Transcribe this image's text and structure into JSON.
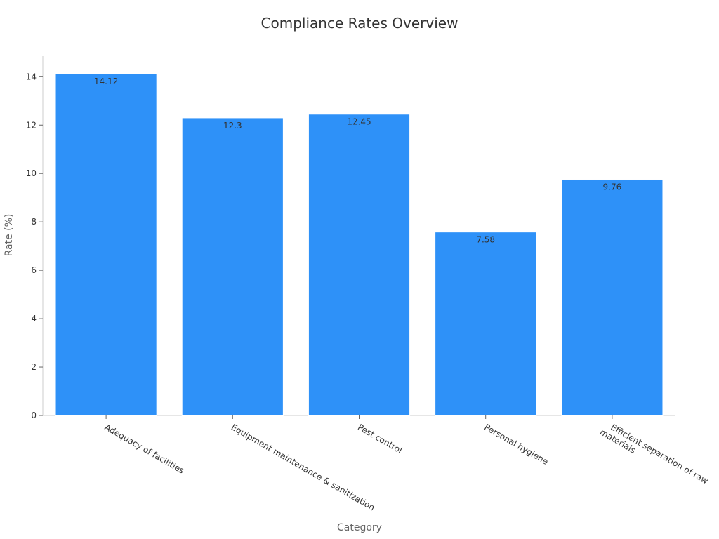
{
  "chart_data": {
    "type": "bar",
    "title": "Compliance Rates Overview",
    "xlabel": "Category",
    "ylabel": "Rate (%)",
    "categories": [
      "Adequacy of facilities",
      "Equipment maintenance & sanitization",
      "Pest control",
      "Personal hygiene",
      "Efficient separation of raw materials"
    ],
    "category_label_lines": [
      [
        "Adequacy of facilities"
      ],
      [
        "Equipment maintenance & sanitization"
      ],
      [
        "Pest control"
      ],
      [
        "Personal hygiene"
      ],
      [
        "Efficient separation of raw",
        "materials"
      ]
    ],
    "values": [
      14.12,
      12.3,
      12.45,
      7.58,
      9.76
    ],
    "data_labels": [
      "14.12",
      "12.3",
      "12.45",
      "7.58",
      "9.76"
    ],
    "yticks": [
      0,
      2,
      4,
      6,
      8,
      10,
      12,
      14
    ],
    "ylim": [
      0,
      14.85
    ],
    "bar_color": "#2e91f8",
    "grid": false,
    "legend": "none"
  }
}
